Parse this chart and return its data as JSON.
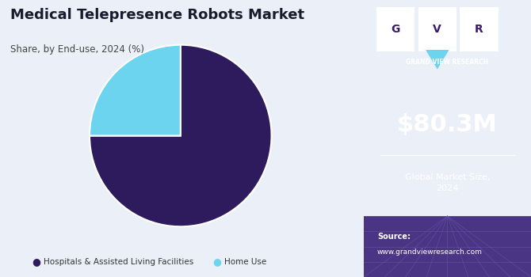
{
  "title": "Medical Telepresence Robots Market",
  "subtitle": "Share, by End-use, 2024 (%)",
  "slices": [
    75,
    25
  ],
  "labels": [
    "Hospitals & Assisted Living Facilities",
    "Home Use"
  ],
  "colors": [
    "#2D1B5E",
    "#6DD4F0"
  ],
  "legend_dot_colors": [
    "#2D1B5E",
    "#6DD4F0"
  ],
  "bg_color": "#EBF0F8",
  "right_panel_color": "#3B1A6E",
  "right_panel_text_large": "$80.3M",
  "right_panel_text_small": "Global Market Size,\n2024",
  "source_label": "Source:",
  "source_url": "www.grandviewresearch.com",
  "logo_text": "GRAND VIEW RESEARCH",
  "startangle": 90,
  "pie_edge_color": "white"
}
